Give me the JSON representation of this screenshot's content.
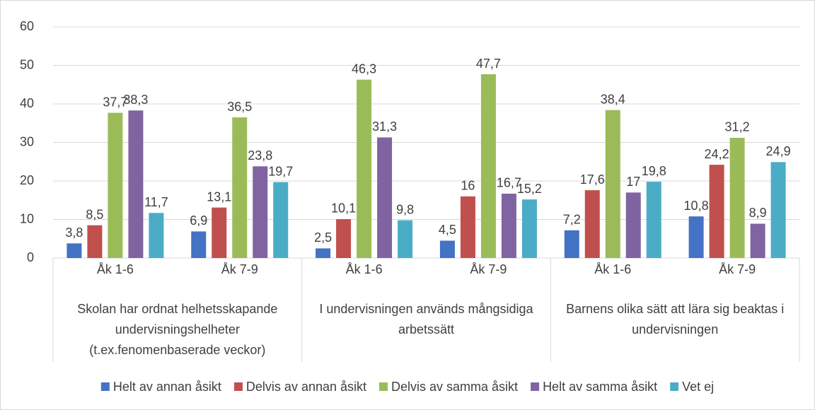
{
  "chart_data": {
    "type": "bar",
    "categories": [
      "Åk 1-6",
      "Åk 7-9",
      "Åk 1-6",
      "Åk 7-9",
      "Åk 1-6",
      "Åk 7-9"
    ],
    "groups": [
      "Skolan har ordnat helhetsskapande undervisningshelheter (t.ex.fenomenbaserade veckor)",
      "I undervisningen används mångsidiga arbetssätt",
      "Barnens olika sätt att lära sig beaktas i undervisningen"
    ],
    "series": [
      {
        "name": "Helt av annan åsikt",
        "color": "#4472c4",
        "values": [
          3.8,
          6.9,
          2.5,
          4.5,
          7.2,
          10.8
        ],
        "value_labels": [
          "3,8",
          "6,9",
          "2,5",
          "4,5",
          "7,2",
          "10,8"
        ]
      },
      {
        "name": "Delvis av annan åsikt",
        "color": "#c0504d",
        "values": [
          8.5,
          13.1,
          10.1,
          16,
          17.6,
          24.2
        ],
        "value_labels": [
          "8,5",
          "13,1",
          "10,1",
          "16",
          "17,6",
          "24,2"
        ]
      },
      {
        "name": "Delvis av samma åsikt",
        "color": "#9bbb59",
        "values": [
          37.7,
          36.5,
          46.3,
          47.7,
          38.4,
          31.2
        ],
        "value_labels": [
          "37,7",
          "36,5",
          "46,3",
          "47,7",
          "38,4",
          "31,2"
        ]
      },
      {
        "name": "Helt av samma åsikt",
        "color": "#8064a2",
        "values": [
          38.3,
          23.8,
          31.3,
          16.7,
          17,
          8.9
        ],
        "value_labels": [
          "38,3",
          "23,8",
          "31,3",
          "16,7",
          "17",
          "8,9"
        ]
      },
      {
        "name": "Vet ej",
        "color": "#4bacc6",
        "values": [
          11.7,
          19.7,
          9.8,
          15.2,
          19.8,
          24.9
        ],
        "value_labels": [
          "11,7",
          "19,7",
          "9,8",
          "15,2",
          "19,8",
          "24,9"
        ]
      }
    ],
    "ylim": [
      0,
      60
    ],
    "yticks": [
      0,
      10,
      20,
      30,
      40,
      50,
      60
    ],
    "grid": true,
    "legend": "bottom"
  }
}
